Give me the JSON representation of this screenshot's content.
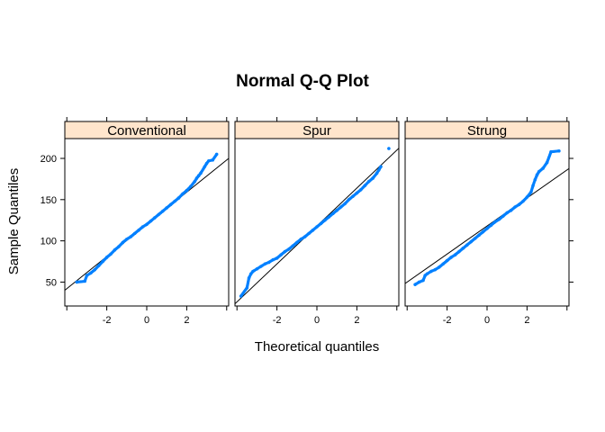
{
  "chart_data": {
    "type": "scatter",
    "title": "Normal Q-Q Plot",
    "xlabel": "Theoretical quantiles",
    "ylabel": "Sample Quantiles",
    "xlim": [
      -4.1,
      4.1
    ],
    "ylim": [
      21,
      224
    ],
    "x_ticks": [
      -2,
      0,
      2
    ],
    "y_ticks": [
      50,
      100,
      150,
      200
    ],
    "grid": false,
    "point_color": "#0080ff",
    "line_color": "#000000",
    "strip_color": "#ffe5cc",
    "panels": [
      {
        "name": "Conventional",
        "line": {
          "intercept": 120,
          "slope": 19.5
        },
        "points": [
          [
            -3.5,
            50
          ],
          [
            -3.1,
            51
          ],
          [
            -3.0,
            58
          ],
          [
            -2.8,
            61
          ],
          [
            -2.6,
            65
          ],
          [
            -2.4,
            70
          ],
          [
            -2.2,
            75
          ],
          [
            -2.0,
            80
          ],
          [
            -1.8,
            84
          ],
          [
            -1.6,
            89
          ],
          [
            -1.4,
            93
          ],
          [
            -1.2,
            98
          ],
          [
            -1.0,
            102
          ],
          [
            -0.8,
            105
          ],
          [
            -0.6,
            109
          ],
          [
            -0.4,
            113
          ],
          [
            -0.2,
            117
          ],
          [
            0.0,
            120
          ],
          [
            0.2,
            124
          ],
          [
            0.4,
            128
          ],
          [
            0.6,
            132
          ],
          [
            0.8,
            136
          ],
          [
            1.0,
            140
          ],
          [
            1.2,
            144
          ],
          [
            1.4,
            148
          ],
          [
            1.6,
            152
          ],
          [
            1.8,
            157
          ],
          [
            2.0,
            161
          ],
          [
            2.2,
            166
          ],
          [
            2.4,
            172
          ],
          [
            2.5,
            176
          ],
          [
            2.6,
            179
          ],
          [
            2.7,
            182
          ],
          [
            2.9,
            190
          ],
          [
            3.0,
            194
          ],
          [
            3.1,
            197
          ],
          [
            3.3,
            198
          ],
          [
            3.5,
            205
          ]
        ]
      },
      {
        "name": "Spur",
        "line": {
          "intercept": 118,
          "slope": 23.0
        },
        "points": [
          [
            -3.8,
            33
          ],
          [
            -3.5,
            43
          ],
          [
            -3.4,
            55
          ],
          [
            -3.3,
            60
          ],
          [
            -3.2,
            63
          ],
          [
            -3.0,
            66
          ],
          [
            -2.8,
            69
          ],
          [
            -2.6,
            72
          ],
          [
            -2.4,
            74
          ],
          [
            -2.2,
            77
          ],
          [
            -2.0,
            79
          ],
          [
            -1.8,
            83
          ],
          [
            -1.6,
            87
          ],
          [
            -1.4,
            90
          ],
          [
            -1.2,
            94
          ],
          [
            -1.0,
            98
          ],
          [
            -0.8,
            102
          ],
          [
            -0.6,
            105
          ],
          [
            -0.4,
            109
          ],
          [
            -0.2,
            113
          ],
          [
            0.0,
            117
          ],
          [
            0.2,
            121
          ],
          [
            0.4,
            125
          ],
          [
            0.6,
            129
          ],
          [
            0.8,
            133
          ],
          [
            1.0,
            137
          ],
          [
            1.2,
            141
          ],
          [
            1.4,
            145
          ],
          [
            1.6,
            150
          ],
          [
            1.8,
            154
          ],
          [
            2.0,
            158
          ],
          [
            2.2,
            162
          ],
          [
            2.4,
            167
          ],
          [
            2.6,
            172
          ],
          [
            2.8,
            176
          ],
          [
            3.0,
            182
          ],
          [
            3.1,
            186
          ],
          [
            3.2,
            190
          ],
          [
            3.6,
            212
          ]
        ]
      },
      {
        "name": "Strung",
        "line": {
          "intercept": 118,
          "slope": 17.0
        },
        "points": [
          [
            -3.6,
            47
          ],
          [
            -3.4,
            50
          ],
          [
            -3.2,
            52
          ],
          [
            -3.1,
            58
          ],
          [
            -3.0,
            60
          ],
          [
            -2.8,
            63
          ],
          [
            -2.6,
            65
          ],
          [
            -2.4,
            68
          ],
          [
            -2.2,
            72
          ],
          [
            -2.0,
            76
          ],
          [
            -1.8,
            80
          ],
          [
            -1.6,
            83
          ],
          [
            -1.4,
            87
          ],
          [
            -1.2,
            91
          ],
          [
            -1.0,
            95
          ],
          [
            -0.8,
            99
          ],
          [
            -0.6,
            103
          ],
          [
            -0.4,
            107
          ],
          [
            -0.2,
            111
          ],
          [
            0.0,
            115
          ],
          [
            0.2,
            119
          ],
          [
            0.4,
            123
          ],
          [
            0.6,
            126
          ],
          [
            0.8,
            130
          ],
          [
            1.0,
            134
          ],
          [
            1.2,
            137
          ],
          [
            1.4,
            141
          ],
          [
            1.6,
            144
          ],
          [
            1.8,
            148
          ],
          [
            2.0,
            153
          ],
          [
            2.2,
            159
          ],
          [
            2.3,
            167
          ],
          [
            2.4,
            174
          ],
          [
            2.5,
            180
          ],
          [
            2.6,
            184
          ],
          [
            2.8,
            188
          ],
          [
            3.0,
            195
          ],
          [
            3.2,
            208
          ],
          [
            3.6,
            209
          ]
        ]
      }
    ]
  }
}
